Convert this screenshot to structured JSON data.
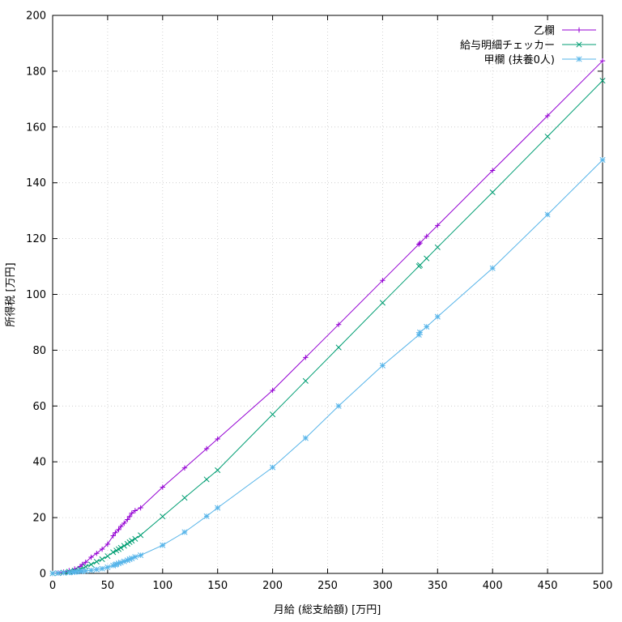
{
  "chart_data": {
    "type": "line",
    "title": "",
    "xlabel": "月給 (総支給額) [万円]",
    "ylabel": "所得税 [万円]",
    "xlim": [
      0,
      500
    ],
    "ylim": [
      0,
      200
    ],
    "xticks": [
      0,
      50,
      100,
      150,
      200,
      250,
      300,
      350,
      400,
      450,
      500
    ],
    "yticks": [
      0,
      20,
      40,
      60,
      80,
      100,
      120,
      140,
      160,
      180,
      200
    ],
    "grid": true,
    "legend_position": "top-right",
    "series": [
      {
        "name": "乙欄",
        "color": "#9400d3",
        "marker": "plus",
        "x": [
          0,
          5,
          10,
          15,
          20,
          25,
          27,
          30,
          35,
          40,
          45,
          50,
          55,
          57,
          60,
          62,
          65,
          68,
          70,
          72,
          75,
          80,
          100,
          120,
          140,
          150,
          200,
          230,
          260,
          300,
          333,
          334,
          340,
          350,
          400,
          450,
          500
        ],
        "y": [
          0,
          0.2,
          0.5,
          1.0,
          1.6,
          2.5,
          3.2,
          4.0,
          5.8,
          7.2,
          8.7,
          10.5,
          13.5,
          14.6,
          15.7,
          16.8,
          18.0,
          19.3,
          20.4,
          21.6,
          22.5,
          23.5,
          30.9,
          37.8,
          44.7,
          48.2,
          65.6,
          77.4,
          89.2,
          105.0,
          118.0,
          118.4,
          120.8,
          124.7,
          144.4,
          164.0,
          183.7
        ]
      },
      {
        "name": "給与明細チェッカー",
        "color": "#009e73",
        "marker": "cross",
        "x": [
          0,
          5,
          10,
          15,
          20,
          25,
          30,
          35,
          40,
          45,
          50,
          55,
          58,
          60,
          62,
          65,
          68,
          70,
          72,
          75,
          80,
          100,
          120,
          140,
          150,
          200,
          230,
          260,
          300,
          333,
          334,
          340,
          350,
          400,
          450,
          500
        ],
        "y": [
          0,
          0.1,
          0.3,
          0.6,
          1.0,
          1.5,
          2.4,
          3.2,
          4.2,
          5.1,
          6.2,
          7.6,
          8.2,
          8.7,
          9.2,
          9.9,
          10.6,
          11.2,
          11.7,
          12.4,
          13.7,
          20.4,
          27.1,
          33.7,
          37.0,
          57.0,
          69.0,
          81.0,
          97.0,
          110.1,
          110.5,
          112.9,
          116.9,
          136.6,
          156.6,
          176.6
        ]
      },
      {
        "name": "甲欄 (扶養0人)",
        "color": "#56b4e9",
        "marker": "star",
        "x": [
          0,
          5,
          10,
          15,
          18,
          20,
          22,
          25,
          27,
          30,
          35,
          40,
          45,
          50,
          55,
          57,
          58,
          60,
          62,
          65,
          68,
          70,
          72,
          75,
          80,
          100,
          120,
          140,
          150,
          200,
          230,
          260,
          300,
          333,
          334,
          340,
          350,
          400,
          450,
          500
        ],
        "y": [
          0,
          0.1,
          0.2,
          0.3,
          0.4,
          0.5,
          0.6,
          0.7,
          0.8,
          0.9,
          1.1,
          1.4,
          1.7,
          2.2,
          2.8,
          3.1,
          3.3,
          3.6,
          3.9,
          4.3,
          4.7,
          5.1,
          5.4,
          5.9,
          6.5,
          10.1,
          14.8,
          20.5,
          23.5,
          38.0,
          48.5,
          60.0,
          74.5,
          85.5,
          86.4,
          88.4,
          92.0,
          109.4,
          128.6,
          148.2
        ]
      }
    ]
  }
}
